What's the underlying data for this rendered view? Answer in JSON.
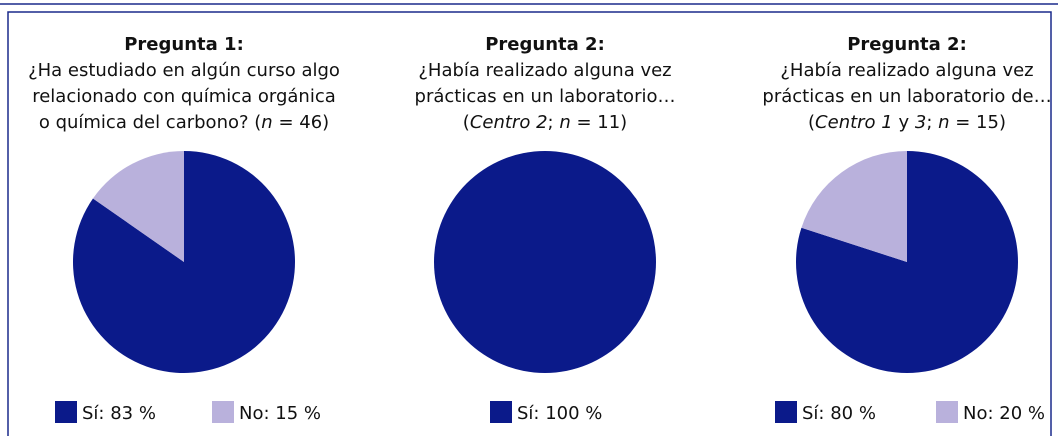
{
  "chart_data": [
    {
      "type": "pie",
      "title": "Pregunta 1:",
      "subtitle_lines": [
        [
          "¿Ha estudiado en algún curso algo"
        ],
        [
          "relacionado con química orgánica"
        ],
        [
          "o química del carbono? (",
          "n",
          " = 46)"
        ]
      ],
      "values": [
        83,
        15
      ],
      "value_labels": [
        "Sí: 83 %",
        "No: 15 %"
      ],
      "colors": [
        "#0b1a8a",
        "#b9b1dc"
      ]
    },
    {
      "type": "pie",
      "title": "Pregunta 2:",
      "subtitle_lines": [
        [
          "¿Había realizado alguna vez"
        ],
        [
          "prácticas en un laboratorio…"
        ],
        [
          "(",
          "Centro 2",
          "; ",
          "n",
          " = 11)"
        ]
      ],
      "values": [
        100
      ],
      "value_labels": [
        "Sí: 100 %"
      ],
      "colors": [
        "#0b1a8a"
      ]
    },
    {
      "type": "pie",
      "title": "Pregunta 2:",
      "subtitle_lines": [
        [
          "¿Había realizado alguna vez"
        ],
        [
          "prácticas en un laboratorio de…"
        ],
        [
          "(",
          "Centro 1",
          " y ",
          "3",
          "; ",
          "n",
          " = 15)"
        ]
      ],
      "values": [
        80,
        20
      ],
      "value_labels": [
        "Sí: 80 %",
        "No: 20 %"
      ],
      "colors": [
        "#0b1a8a",
        "#b9b1dc"
      ]
    }
  ]
}
